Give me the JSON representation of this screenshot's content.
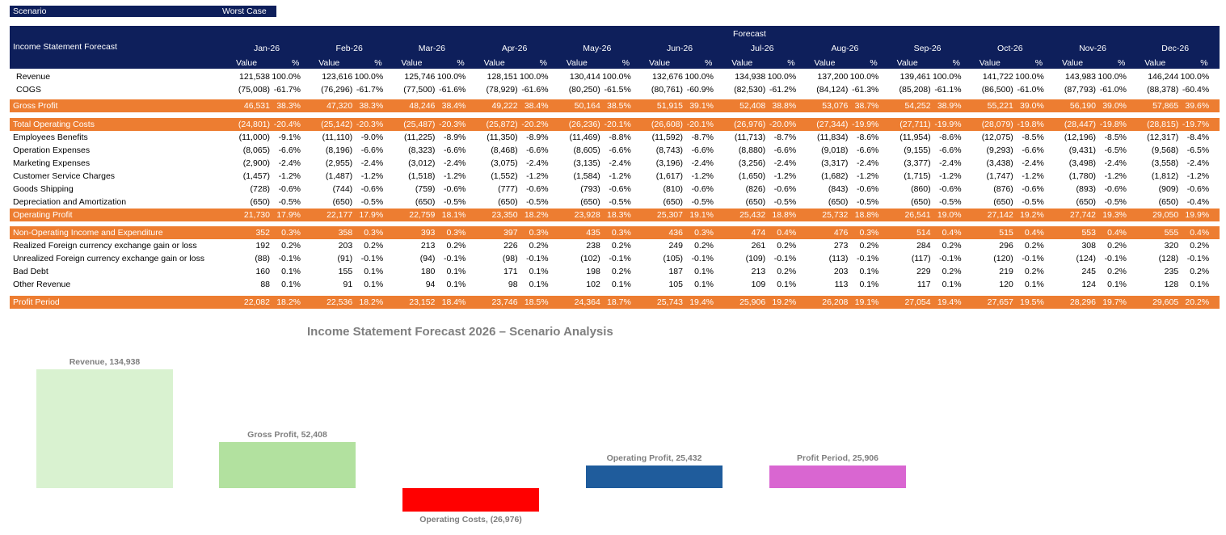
{
  "scenario": {
    "label": "Scenario",
    "value": "Worst Case"
  },
  "header": {
    "title": "Income Statement Forecast",
    "forecast": "Forecast",
    "months": [
      "Jan-26",
      "Feb-26",
      "Mar-26",
      "Apr-26",
      "May-26",
      "Jun-26",
      "Jul-26",
      "Aug-26",
      "Sep-26",
      "Oct-26",
      "Nov-26",
      "Dec-26"
    ],
    "value_label": "Value",
    "pct_label": "%"
  },
  "rows": [
    {
      "label": "Revenue",
      "style": "plain",
      "indent": true,
      "values": [
        "121,538",
        "123,616",
        "125,746",
        "128,151",
        "130,414",
        "132,676",
        "134,938",
        "137,200",
        "139,461",
        "141,722",
        "143,983",
        "146,244"
      ],
      "pcts": [
        "100.0%",
        "100.0%",
        "100.0%",
        "100.0%",
        "100.0%",
        "100.0%",
        "100.0%",
        "100.0%",
        "100.0%",
        "100.0%",
        "100.0%",
        "100.0%"
      ]
    },
    {
      "label": "COGS",
      "style": "plain",
      "indent": true,
      "values": [
        "(75,008)",
        "(76,296)",
        "(77,500)",
        "(78,929)",
        "(80,250)",
        "(80,761)",
        "(82,530)",
        "(84,124)",
        "(85,208)",
        "(86,500)",
        "(87,793)",
        "(88,378)"
      ],
      "pcts": [
        "-61.7%",
        "-61.7%",
        "-61.6%",
        "-61.6%",
        "-61.5%",
        "-60.9%",
        "-61.2%",
        "-61.3%",
        "-61.1%",
        "-61.0%",
        "-61.0%",
        "-60.4%"
      ]
    },
    {
      "label": "Gross Profit",
      "style": "band",
      "values": [
        "46,531",
        "47,320",
        "48,246",
        "49,222",
        "50,164",
        "51,915",
        "52,408",
        "53,076",
        "54,252",
        "55,221",
        "56,190",
        "57,865"
      ],
      "pcts": [
        "38.3%",
        "38.3%",
        "38.4%",
        "38.4%",
        "38.5%",
        "39.1%",
        "38.8%",
        "38.7%",
        "38.9%",
        "39.0%",
        "39.0%",
        "39.6%"
      ]
    },
    {
      "label": "Total Operating Costs",
      "style": "band",
      "values": [
        "(24,801)",
        "(25,142)",
        "(25,487)",
        "(25,872)",
        "(26,236)",
        "(26,608)",
        "(26,976)",
        "(27,344)",
        "(27,711)",
        "(28,079)",
        "(28,447)",
        "(28,815)"
      ],
      "pcts": [
        "-20.4%",
        "-20.3%",
        "-20.3%",
        "-20.2%",
        "-20.1%",
        "-20.1%",
        "-20.0%",
        "-19.9%",
        "-19.9%",
        "-19.8%",
        "-19.8%",
        "-19.7%"
      ]
    },
    {
      "label": "Employees Benefits",
      "style": "plain",
      "values": [
        "(11,000)",
        "(11,110)",
        "(11,225)",
        "(11,350)",
        "(11,469)",
        "(11,592)",
        "(11,713)",
        "(11,834)",
        "(11,954)",
        "(12,075)",
        "(12,196)",
        "(12,317)"
      ],
      "pcts": [
        "-9.1%",
        "-9.0%",
        "-8.9%",
        "-8.9%",
        "-8.8%",
        "-8.7%",
        "-8.7%",
        "-8.6%",
        "-8.6%",
        "-8.5%",
        "-8.5%",
        "-8.4%"
      ]
    },
    {
      "label": "Operation Expenses",
      "style": "plain",
      "values": [
        "(8,065)",
        "(8,196)",
        "(8,323)",
        "(8,468)",
        "(8,605)",
        "(8,743)",
        "(8,880)",
        "(9,018)",
        "(9,155)",
        "(9,293)",
        "(9,431)",
        "(9,568)"
      ],
      "pcts": [
        "-6.6%",
        "-6.6%",
        "-6.6%",
        "-6.6%",
        "-6.6%",
        "-6.6%",
        "-6.6%",
        "-6.6%",
        "-6.6%",
        "-6.6%",
        "-6.5%",
        "-6.5%"
      ]
    },
    {
      "label": "Marketing Expenses",
      "style": "plain",
      "values": [
        "(2,900)",
        "(2,955)",
        "(3,012)",
        "(3,075)",
        "(3,135)",
        "(3,196)",
        "(3,256)",
        "(3,317)",
        "(3,377)",
        "(3,438)",
        "(3,498)",
        "(3,558)"
      ],
      "pcts": [
        "-2.4%",
        "-2.4%",
        "-2.4%",
        "-2.4%",
        "-2.4%",
        "-2.4%",
        "-2.4%",
        "-2.4%",
        "-2.4%",
        "-2.4%",
        "-2.4%",
        "-2.4%"
      ]
    },
    {
      "label": "Customer Service Charges",
      "style": "plain",
      "values": [
        "(1,457)",
        "(1,487)",
        "(1,518)",
        "(1,552)",
        "(1,584)",
        "(1,617)",
        "(1,650)",
        "(1,682)",
        "(1,715)",
        "(1,747)",
        "(1,780)",
        "(1,812)"
      ],
      "pcts": [
        "-1.2%",
        "-1.2%",
        "-1.2%",
        "-1.2%",
        "-1.2%",
        "-1.2%",
        "-1.2%",
        "-1.2%",
        "-1.2%",
        "-1.2%",
        "-1.2%",
        "-1.2%"
      ]
    },
    {
      "label": "Goods Shipping",
      "style": "plain",
      "values": [
        "(728)",
        "(744)",
        "(759)",
        "(777)",
        "(793)",
        "(810)",
        "(826)",
        "(843)",
        "(860)",
        "(876)",
        "(893)",
        "(909)"
      ],
      "pcts": [
        "-0.6%",
        "-0.6%",
        "-0.6%",
        "-0.6%",
        "-0.6%",
        "-0.6%",
        "-0.6%",
        "-0.6%",
        "-0.6%",
        "-0.6%",
        "-0.6%",
        "-0.6%"
      ]
    },
    {
      "label": "Depreciation and Amortization",
      "style": "plain",
      "values": [
        "(650)",
        "(650)",
        "(650)",
        "(650)",
        "(650)",
        "(650)",
        "(650)",
        "(650)",
        "(650)",
        "(650)",
        "(650)",
        "(650)"
      ],
      "pcts": [
        "-0.5%",
        "-0.5%",
        "-0.5%",
        "-0.5%",
        "-0.5%",
        "-0.5%",
        "-0.5%",
        "-0.5%",
        "-0.5%",
        "-0.5%",
        "-0.5%",
        "-0.4%"
      ]
    },
    {
      "label": "Operating Profit",
      "style": "band",
      "values": [
        "21,730",
        "22,177",
        "22,759",
        "23,350",
        "23,928",
        "25,307",
        "25,432",
        "25,732",
        "26,541",
        "27,142",
        "27,742",
        "29,050"
      ],
      "pcts": [
        "17.9%",
        "17.9%",
        "18.1%",
        "18.2%",
        "18.3%",
        "19.1%",
        "18.8%",
        "18.8%",
        "19.0%",
        "19.2%",
        "19.3%",
        "19.9%"
      ]
    },
    {
      "label": "Non-Operating Income and Expenditure",
      "style": "band",
      "values": [
        "352",
        "358",
        "393",
        "397",
        "435",
        "436",
        "474",
        "476",
        "514",
        "515",
        "553",
        "555"
      ],
      "pcts": [
        "0.3%",
        "0.3%",
        "0.3%",
        "0.3%",
        "0.3%",
        "0.3%",
        "0.4%",
        "0.3%",
        "0.4%",
        "0.4%",
        "0.4%",
        "0.4%"
      ]
    },
    {
      "label": "Realized Foreign currency exchange gain or loss",
      "style": "plain",
      "values": [
        "192",
        "203",
        "213",
        "226",
        "238",
        "249",
        "261",
        "273",
        "284",
        "296",
        "308",
        "320"
      ],
      "pcts": [
        "0.2%",
        "0.2%",
        "0.2%",
        "0.2%",
        "0.2%",
        "0.2%",
        "0.2%",
        "0.2%",
        "0.2%",
        "0.2%",
        "0.2%",
        "0.2%"
      ]
    },
    {
      "label": "Unrealized Foreign currency exchange gain or loss",
      "style": "plain",
      "values": [
        "(88)",
        "(91)",
        "(94)",
        "(98)",
        "(102)",
        "(105)",
        "(109)",
        "(113)",
        "(117)",
        "(120)",
        "(124)",
        "(128)"
      ],
      "pcts": [
        "-0.1%",
        "-0.1%",
        "-0.1%",
        "-0.1%",
        "-0.1%",
        "-0.1%",
        "-0.1%",
        "-0.1%",
        "-0.1%",
        "-0.1%",
        "-0.1%",
        "-0.1%"
      ]
    },
    {
      "label": "Bad Debt",
      "style": "plain",
      "values": [
        "160",
        "155",
        "180",
        "171",
        "198",
        "187",
        "213",
        "203",
        "229",
        "219",
        "245",
        "235"
      ],
      "pcts": [
        "0.1%",
        "0.1%",
        "0.1%",
        "0.1%",
        "0.2%",
        "0.1%",
        "0.2%",
        "0.1%",
        "0.2%",
        "0.2%",
        "0.2%",
        "0.2%"
      ]
    },
    {
      "label": "Other Revenue",
      "style": "plain",
      "values": [
        "88",
        "91",
        "94",
        "98",
        "102",
        "105",
        "109",
        "113",
        "117",
        "120",
        "124",
        "128"
      ],
      "pcts": [
        "0.1%",
        "0.1%",
        "0.1%",
        "0.1%",
        "0.1%",
        "0.1%",
        "0.1%",
        "0.1%",
        "0.1%",
        "0.1%",
        "0.1%",
        "0.1%"
      ]
    },
    {
      "label": "Profit Period",
      "style": "band",
      "values": [
        "22,082",
        "22,536",
        "23,152",
        "23,746",
        "24,364",
        "25,743",
        "25,906",
        "26,208",
        "27,054",
        "27,657",
        "28,296",
        "29,605"
      ],
      "pcts": [
        "18.2%",
        "18.2%",
        "18.4%",
        "18.5%",
        "18.7%",
        "19.4%",
        "19.2%",
        "19.1%",
        "19.4%",
        "19.5%",
        "19.7%",
        "20.2%"
      ]
    }
  ],
  "colors": {
    "navy": "#0e1f5b",
    "orange": "#ed7d31"
  },
  "chart_data": {
    "type": "bar",
    "title": "Income Statement Forecast 2026 – Scenario Analysis",
    "categories": [
      "Revenue",
      "Gross Profit",
      "Operating Costs",
      "Operating Profit",
      "Profit Period"
    ],
    "values": [
      134938,
      52408,
      -26976,
      25432,
      25906
    ],
    "labels": [
      "Revenue, 134,938",
      "Gross Profit, 52,408",
      "Operating Costs, (26,976)",
      "Operating Profit, 25,432",
      "Profit Period, 25,906"
    ],
    "colors": [
      "#d9f2d0",
      "#b2e19f",
      "#ff0000",
      "#1f5c9c",
      "#d966d1"
    ],
    "ylim": [
      -26976,
      134938
    ]
  }
}
